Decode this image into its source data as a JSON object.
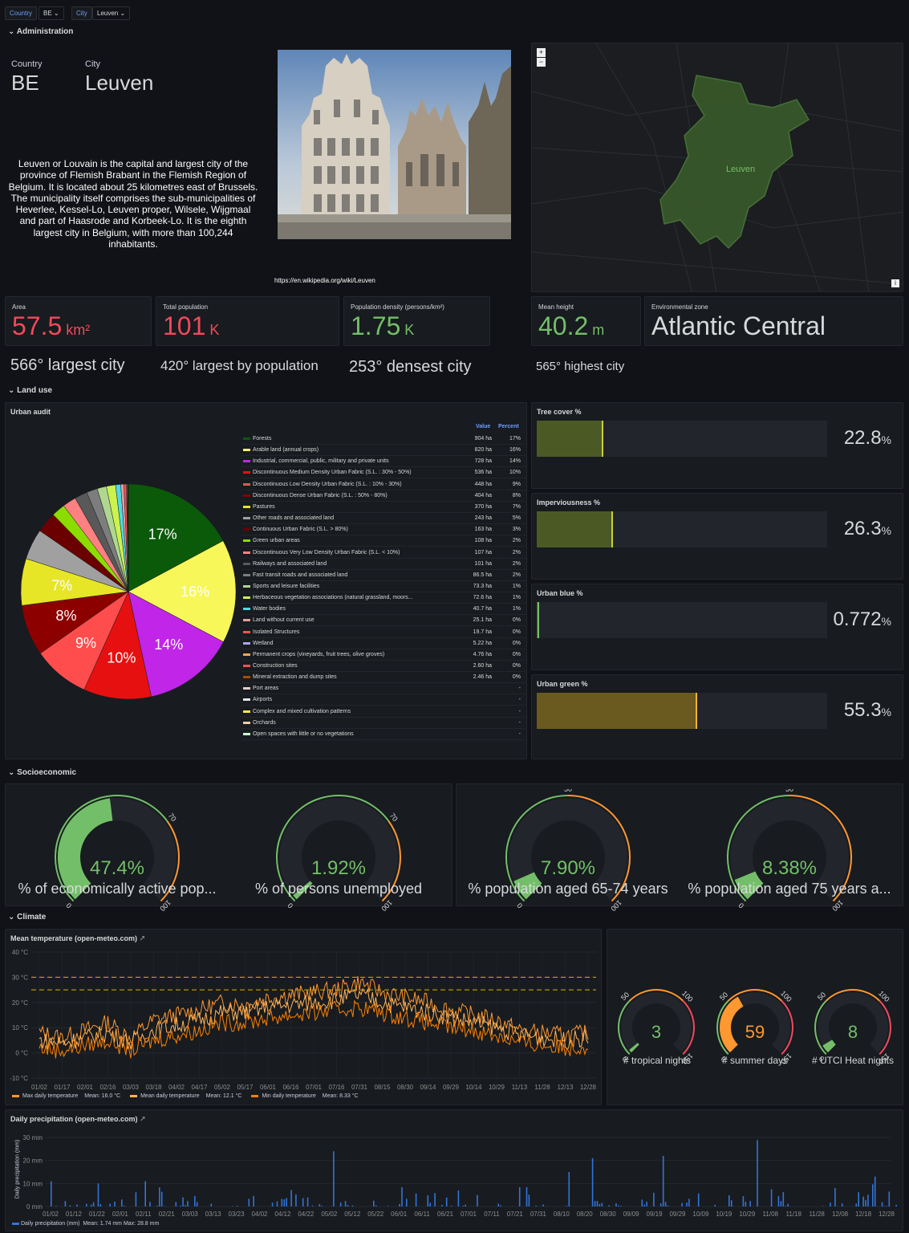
{
  "vars": {
    "country_label": "Country",
    "country_value": "BE",
    "city_label": "City",
    "city_value": "Leuven"
  },
  "rows": {
    "administration": "Administration",
    "land_use": "Land use",
    "socioeconomic": "Socioeconomic",
    "climate": "Climate"
  },
  "admin": {
    "country_label": "Country",
    "country_value": "BE",
    "city_label": "City",
    "city_value": "Leuven",
    "description": "Leuven or Louvain is the capital and largest city of the province of Flemish Brabant in the Flemish Region of Belgium. It is located about 25 kilometres east of Brussels. The municipality itself comprises the sub-municipalities of Heverlee, Kessel-Lo, Leuven proper, Wilsele, Wijgmaal and part of Haasrode and Korbeek-Lo. It is the eighth largest city in Belgium, with more than 100,244 inhabitants.",
    "link": "https://en.wikipedia.org/wiki/Leuven",
    "map_label": "Leuven",
    "zoom_in": "+",
    "zoom_out": "−",
    "info": "i"
  },
  "stats": {
    "area": {
      "label": "Area",
      "value": "57.5",
      "unit": " km²",
      "color": "#f2495c"
    },
    "population": {
      "label": "Total population",
      "value": "101",
      "unit": " K",
      "color": "#f2495c"
    },
    "density": {
      "label": "Population density (persons/km²)",
      "value": "1.75",
      "unit": " K",
      "color": "#73bf69"
    },
    "height": {
      "label": "Mean height",
      "value": "40.2",
      "unit": " m",
      "color": "#73bf69"
    },
    "zone": {
      "label": "Environmental zone",
      "value": "Atlantic Central",
      "color": "#d8d9da"
    }
  },
  "ranks": {
    "largest": "566° largest city",
    "population": "420° largest by population",
    "densest": "253° densest city",
    "highest": "565° highest city"
  },
  "urban_audit": {
    "title": "Urban audit",
    "col_value": "Value",
    "col_percent": "Percent",
    "rows": [
      {
        "name": "Forests",
        "value": "904 ha",
        "pct": "17%",
        "color": "#0a5a0a"
      },
      {
        "name": "Arable land (annual crops)",
        "value": "820 ha",
        "pct": "16%",
        "color": "#f7f75a"
      },
      {
        "name": "Industrial, commercial, public, military and private units",
        "value": "728 ha",
        "pct": "14%",
        "color": "#c025e8"
      },
      {
        "name": "Discontinuous Medium Density Urban Fabric (S.L. : 30% - 50%)",
        "value": "536 ha",
        "pct": "10%",
        "color": "#e61010"
      },
      {
        "name": "Discontinuous Low Density Urban Fabric (S.L. : 10% - 30%)",
        "value": "448 ha",
        "pct": "9%",
        "color": "#ff4d4d"
      },
      {
        "name": "Discontinuous Dense Urban Fabric (S.L. : 50% - 80%)",
        "value": "404 ha",
        "pct": "8%",
        "color": "#8c0000"
      },
      {
        "name": "Pastures",
        "value": "370 ha",
        "pct": "7%",
        "color": "#e6e626"
      },
      {
        "name": "Other roads and associated land",
        "value": "243 ha",
        "pct": "5%",
        "color": "#a0a0a0"
      },
      {
        "name": "Continuous Urban Fabric (S.L. > 80%)",
        "value": "163 ha",
        "pct": "3%",
        "color": "#6b0000"
      },
      {
        "name": "Green urban areas",
        "value": "108 ha",
        "pct": "2%",
        "color": "#8cdc00"
      },
      {
        "name": "Discontinuous Very Low Density Urban Fabric (S.L. < 10%)",
        "value": "107 ha",
        "pct": "2%",
        "color": "#ff8080"
      },
      {
        "name": "Railways and associated land",
        "value": "101 ha",
        "pct": "2%",
        "color": "#595959"
      },
      {
        "name": "Fast transit roads and associated land",
        "value": "86.5 ha",
        "pct": "2%",
        "color": "#7d7d7d"
      },
      {
        "name": "Sports and leisure facilities",
        "value": "73.3 ha",
        "pct": "1%",
        "color": "#afd790"
      },
      {
        "name": "Herbaceous vegetation associations (natural grassland, moors...",
        "value": "72.6 ha",
        "pct": "1%",
        "color": "#ccf24d"
      },
      {
        "name": "Water bodies",
        "value": "40.7 ha",
        "pct": "1%",
        "color": "#4dd9e6"
      },
      {
        "name": "Land without current use",
        "value": "25.1 ha",
        "pct": "0%",
        "color": "#e0a0a0"
      },
      {
        "name": "Isolated Structures",
        "value": "19.7 ha",
        "pct": "0%",
        "color": "#ff5050"
      },
      {
        "name": "Wetland",
        "value": "5.22 ha",
        "pct": "0%",
        "color": "#a6a6ff"
      },
      {
        "name": "Permanent crops (vineyards, fruit trees, olive groves)",
        "value": "4.76 ha",
        "pct": "0%",
        "color": "#f2a64d"
      },
      {
        "name": "Construction sites",
        "value": "2.60 ha",
        "pct": "0%",
        "color": "#ff4d4d"
      },
      {
        "name": "Mineral extraction and dump sites",
        "value": "2.46 ha",
        "pct": "0%",
        "color": "#a64d00"
      },
      {
        "name": "Port areas",
        "value": "",
        "pct": "-",
        "color": "#e6cccc"
      },
      {
        "name": "Airports",
        "value": "",
        "pct": "-",
        "color": "#e6e6e6"
      },
      {
        "name": "Complex and mixed cultivation patterns",
        "value": "",
        "pct": "-",
        "color": "#ffe64d"
      },
      {
        "name": "Orchards",
        "value": "",
        "pct": "-",
        "color": "#f2cca6"
      },
      {
        "name": "Open spaces with little or no vegetations",
        "value": "",
        "pct": "-",
        "color": "#ccffcc"
      }
    ]
  },
  "land_bars": [
    {
      "title": "Tree cover %",
      "value": "22.8",
      "unit": "%",
      "fraction": 0.228,
      "color": "#4b5a24",
      "edge": "#c8d040"
    },
    {
      "title": "Imperviousness %",
      "value": "26.3",
      "unit": "%",
      "fraction": 0.263,
      "color": "#4b5a24",
      "edge": "#c8d040"
    },
    {
      "title": "Urban blue %",
      "value": "0.772",
      "unit": "%",
      "fraction": 0.00772,
      "color": "#4b5a24",
      "edge": "#73bf69"
    },
    {
      "title": "Urban green %",
      "value": "55.3",
      "unit": "%",
      "fraction": 0.553,
      "color": "#6b5a20",
      "edge": "#f2b233"
    }
  ],
  "socio_gauges": [
    {
      "value": "47.4%",
      "fraction": 0.474,
      "label": "% of economically active pop...",
      "ticks": [
        "0",
        "70",
        "100"
      ]
    },
    {
      "value": "1.92%",
      "fraction": 0.0192,
      "label": "% of persons unemployed",
      "ticks": [
        "0",
        "70",
        "100"
      ]
    },
    {
      "value": "7.90%",
      "fraction": 0.079,
      "label": "% population aged 65-74 years",
      "ticks": [
        "0",
        "50",
        "100"
      ]
    },
    {
      "value": "8.38%",
      "fraction": 0.0838,
      "label": "% population aged 75 years a...",
      "ticks": [
        "0",
        "50",
        "100"
      ]
    }
  ],
  "climate_gauges": [
    {
      "value": "3",
      "fraction": 0.02,
      "label": "# tropical nights",
      "ticks": [
        "0",
        "50",
        "100",
        "150"
      ],
      "color": "#73bf69"
    },
    {
      "value": "59",
      "fraction": 0.393,
      "label": "# summer days",
      "ticks": [
        "0",
        "50",
        "100",
        "150"
      ],
      "color": "#ff9830"
    },
    {
      "value": "8",
      "fraction": 0.053,
      "label": "# UTCI Heat nights",
      "ticks": [
        "0",
        "50",
        "100",
        "150"
      ],
      "color": "#73bf69"
    }
  ],
  "temp_chart": {
    "title": "Mean temperature (open-meteo.com)",
    "legend": [
      {
        "name": "Max daily temperature",
        "stat": "Mean: 16.0 °C",
        "color": "#ff9830"
      },
      {
        "name": "Mean daily temperature",
        "stat": "Mean: 12.1 °C",
        "color": "#ffb357"
      },
      {
        "name": "Min daily temperature",
        "stat": "Mean: 8.33 °C",
        "color": "#ff7f00"
      }
    ]
  },
  "precip_chart": {
    "title": "Daily precipitation (open-meteo.com)",
    "ylabel": "Daily precipitation (mm)",
    "legend": {
      "name": "Daily precipitation (mm)",
      "stat": "Mean: 1.74 mm  Max: 28.8 mm",
      "color": "#3274d9"
    }
  },
  "chart_data": [
    {
      "type": "line",
      "title": "Mean temperature (open-meteo.com)",
      "ylim": [
        -10,
        40
      ],
      "yticks": [
        "40 °C",
        "30 °C",
        "20 °C",
        "10 °C",
        "0 °C",
        "-10 °C"
      ],
      "x": [
        "01/02",
        "01/17",
        "02/01",
        "02/16",
        "03/03",
        "03/18",
        "04/02",
        "04/17",
        "05/02",
        "05/17",
        "06/01",
        "06/16",
        "07/01",
        "07/16",
        "07/31",
        "08/15",
        "08/30",
        "09/14",
        "09/29",
        "10/14",
        "10/29",
        "11/13",
        "11/28",
        "12/13",
        "12/28"
      ],
      "thresholds": [
        30,
        25
      ],
      "series": [
        {
          "name": "Max daily temperature",
          "values": [
            8,
            6,
            9,
            12,
            6,
            13,
            15,
            17,
            20,
            19,
            22,
            23,
            24,
            25,
            28,
            24,
            22,
            20,
            17,
            15,
            13,
            9,
            8,
            7,
            8
          ]
        },
        {
          "name": "Mean daily temperature",
          "values": [
            5,
            4,
            6,
            8,
            4,
            9,
            11,
            13,
            16,
            16,
            18,
            19,
            20,
            21,
            23,
            20,
            18,
            16,
            14,
            12,
            10,
            7,
            6,
            5,
            6
          ]
        },
        {
          "name": "Min daily temperature",
          "values": [
            2,
            1,
            3,
            5,
            1,
            5,
            7,
            9,
            12,
            12,
            14,
            15,
            16,
            17,
            18,
            16,
            14,
            12,
            10,
            9,
            7,
            4,
            3,
            2,
            3
          ]
        }
      ]
    },
    {
      "type": "bar",
      "title": "Daily precipitation (open-meteo.com)",
      "ylim": [
        0,
        30
      ],
      "yticks": [
        "30 mm",
        "20 mm",
        "10 mm",
        "0 mm"
      ],
      "x": [
        "01/02",
        "01/12",
        "01/22",
        "02/01",
        "02/11",
        "02/21",
        "03/03",
        "03/13",
        "03/23",
        "04/02",
        "04/12",
        "04/22",
        "05/02",
        "05/12",
        "05/22",
        "06/01",
        "06/11",
        "06/21",
        "07/01",
        "07/11",
        "07/21",
        "07/31",
        "08/10",
        "08/20",
        "08/30",
        "09/09",
        "09/19",
        "09/29",
        "10/09",
        "10/19",
        "10/29",
        "11/08",
        "11/18",
        "11/28",
        "12/08",
        "12/18",
        "12/28"
      ],
      "peaks": [
        {
          "x": "01/02",
          "value": 11
        },
        {
          "x": "01/22",
          "value": 10
        },
        {
          "x": "02/11",
          "value": 11
        },
        {
          "x": "05/02",
          "value": 24
        },
        {
          "x": "08/10",
          "value": 15
        },
        {
          "x": "08/20",
          "value": 21
        },
        {
          "x": "09/19",
          "value": 22
        },
        {
          "x": "10/29",
          "value": 28.8
        },
        {
          "x": "12/18",
          "value": 13
        }
      ]
    }
  ]
}
